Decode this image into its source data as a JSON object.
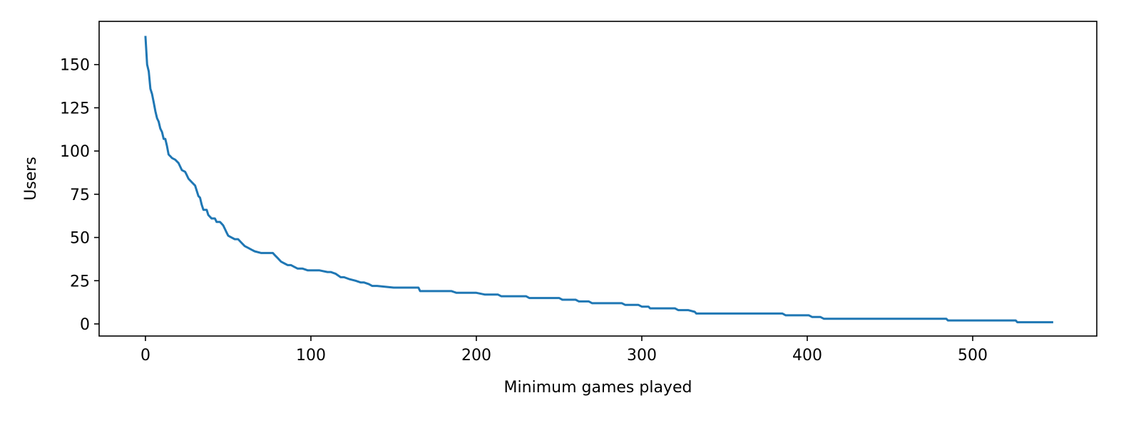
{
  "chart_data": {
    "type": "line",
    "title": "",
    "xlabel": "Minimum games played",
    "ylabel": "Users",
    "xlim": [
      -28,
      575
    ],
    "ylim": [
      -7,
      175
    ],
    "xticks": [
      0,
      100,
      200,
      300,
      400,
      500
    ],
    "yticks": [
      0,
      25,
      50,
      75,
      100,
      125,
      150
    ],
    "grid": false,
    "series": [
      {
        "color": "#1f77b4",
        "x": [
          0,
          1,
          2,
          3,
          4,
          5,
          6,
          7,
          8,
          9,
          10,
          11,
          12,
          13,
          14,
          15,
          16,
          18,
          20,
          22,
          24,
          25,
          26,
          28,
          30,
          31,
          32,
          33,
          34,
          35,
          36,
          37,
          38,
          40,
          41,
          42,
          43,
          44,
          45,
          46,
          47,
          48,
          49,
          50,
          52,
          54,
          56,
          58,
          60,
          62,
          64,
          66,
          70,
          75,
          77,
          78,
          80,
          82,
          84,
          86,
          88,
          90,
          92,
          95,
          98,
          100,
          105,
          110,
          112,
          115,
          118,
          120,
          123,
          127,
          130,
          132,
          135,
          137,
          140,
          150,
          160,
          165,
          166,
          175,
          185,
          188,
          195,
          200,
          205,
          207,
          210,
          213,
          215,
          225,
          230,
          232,
          240,
          250,
          252,
          260,
          262,
          268,
          270,
          280,
          288,
          290,
          298,
          300,
          304,
          305,
          310,
          320,
          322,
          328,
          332,
          333,
          340,
          360,
          380,
          385,
          387,
          390,
          400,
          401,
          403,
          408,
          410,
          420,
          450,
          480,
          484,
          485,
          500,
          520,
          526,
          527,
          530,
          540,
          548
        ],
        "y": [
          166,
          150,
          146,
          136,
          133,
          128,
          123,
          119,
          117,
          113,
          111,
          107,
          107,
          103,
          98,
          97,
          96,
          95,
          93,
          89,
          88,
          86,
          84,
          82,
          80,
          77,
          74,
          73,
          69,
          66,
          66,
          66,
          63,
          61,
          61,
          61,
          59,
          59,
          59,
          58,
          57,
          55,
          53,
          51,
          50,
          49,
          49,
          47,
          45,
          44,
          43,
          42,
          41,
          41,
          41,
          40,
          38,
          36,
          35,
          34,
          34,
          33,
          32,
          32,
          31,
          31,
          31,
          30,
          30,
          29,
          27,
          27,
          26,
          25,
          24,
          24,
          23,
          22,
          22,
          21,
          21,
          21,
          19,
          19,
          19,
          18,
          18,
          18,
          17,
          17,
          17,
          17,
          16,
          16,
          16,
          15,
          15,
          15,
          14,
          14,
          13,
          13,
          12,
          12,
          12,
          11,
          11,
          10,
          10,
          9,
          9,
          9,
          8,
          8,
          7,
          6,
          6,
          6,
          6,
          6,
          5,
          5,
          5,
          5,
          4,
          4,
          3,
          3,
          3,
          3,
          3,
          2,
          2,
          2,
          2,
          1,
          1,
          1,
          1
        ]
      }
    ]
  }
}
